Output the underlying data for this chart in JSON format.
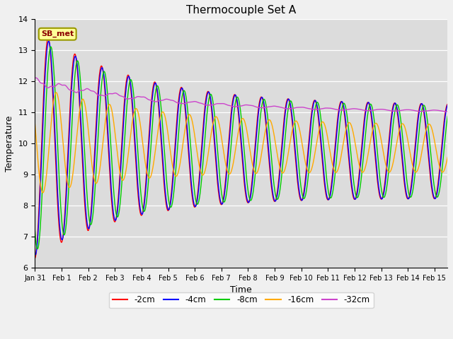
{
  "title": "Thermocouple Set A",
  "xlabel": "Time",
  "ylabel": "Temperature",
  "ylim": [
    6.0,
    14.0
  ],
  "yticks": [
    6.0,
    7.0,
    8.0,
    9.0,
    10.0,
    11.0,
    12.0,
    13.0,
    14.0
  ],
  "colors": {
    "-2cm": "#ff0000",
    "-4cm": "#0000ff",
    "-8cm": "#00cc00",
    "-16cm": "#ffaa00",
    "-32cm": "#cc44cc"
  },
  "legend_labels": [
    "-2cm",
    "-4cm",
    "-8cm",
    "-16cm",
    "-32cm"
  ],
  "annotation_text": "SB_met",
  "figsize": [
    6.4,
    4.8
  ],
  "dpi": 100,
  "n_days": 15.5,
  "dt_hours": 0.25
}
